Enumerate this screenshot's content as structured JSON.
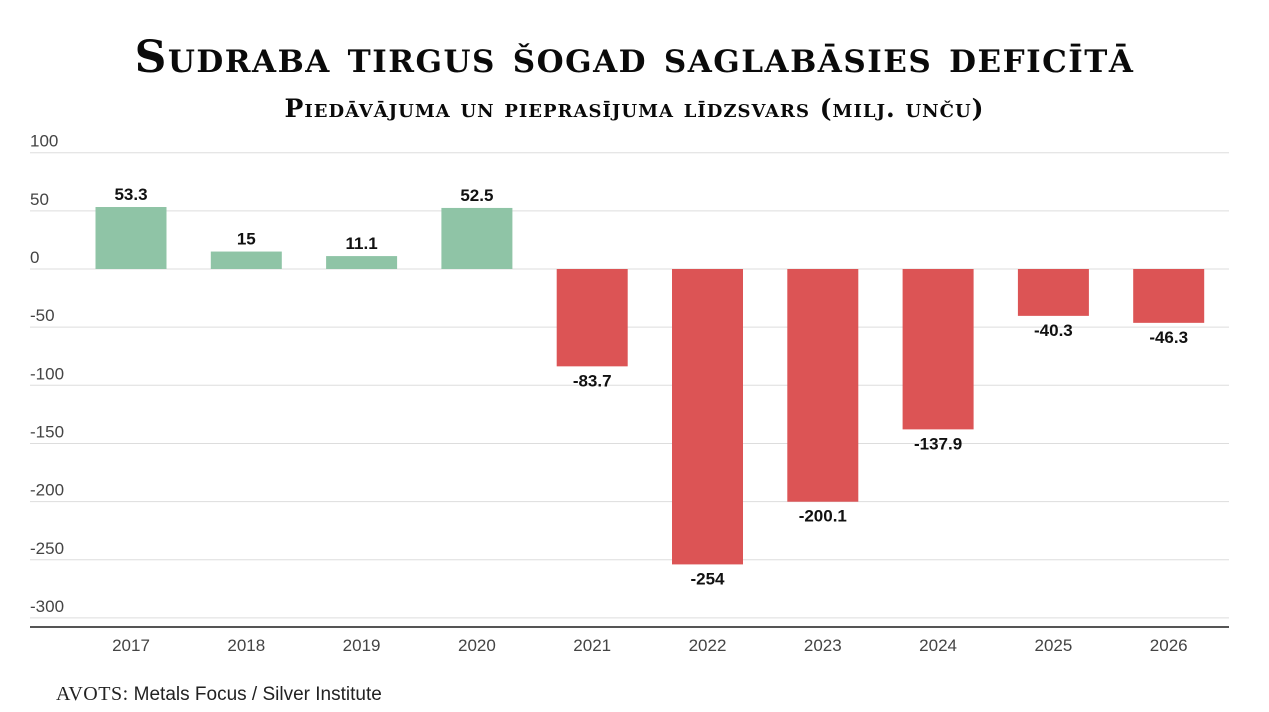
{
  "title": "Sudraba tirgus šogad saglabāsies deficītā",
  "subtitle": "Piedāvājuma un pieprasījuma līdzsvars (milj. unču)",
  "source": {
    "label": "AVOTS:",
    "text": "Metals Focus / Silver Institute"
  },
  "colors": {
    "positive": "#8fc4a6",
    "negative": "#dc5455",
    "grid": "#dddddd",
    "axis": "#555555"
  },
  "chart_data": {
    "type": "bar",
    "title": "Sudraba tirgus šogad saglabāsies deficītā",
    "subtitle": "Piedāvājuma un pieprasījuma līdzsvars (milj. unču)",
    "categories": [
      "2017",
      "2018",
      "2019",
      "2020",
      "2021",
      "2022",
      "2023",
      "2024",
      "2025",
      "2026"
    ],
    "values": [
      53.3,
      15,
      11.1,
      52.5,
      -83.7,
      -254,
      -200.1,
      -137.9,
      -40.3,
      -46.3
    ],
    "value_labels": [
      "53.3",
      "15",
      "11.1",
      "52.5",
      "-83.7",
      "-254",
      "-200.1",
      "-137.9",
      "-40.3",
      "-46.3"
    ],
    "y_ticks": [
      100,
      50,
      0,
      -50,
      -100,
      -150,
      -200,
      -250,
      -300
    ],
    "ylim": [
      -300,
      100
    ],
    "grid": true,
    "legend": "none"
  }
}
